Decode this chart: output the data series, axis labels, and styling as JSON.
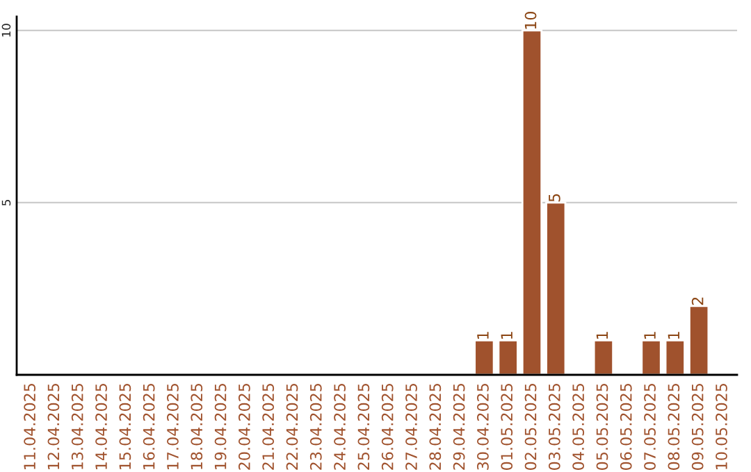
{
  "chart_data": {
    "type": "bar",
    "categories": [
      "11.04.2025",
      "12.04.2025",
      "13.04.2025",
      "14.04.2025",
      "15.04.2025",
      "16.04.2025",
      "17.04.2025",
      "18.04.2025",
      "19.04.2025",
      "20.04.2025",
      "21.04.2025",
      "22.04.2025",
      "23.04.2025",
      "24.04.2025",
      "25.04.2025",
      "26.04.2025",
      "27.04.2025",
      "28.04.2025",
      "29.04.2025",
      "30.04.2025",
      "01.05.2025",
      "02.05.2025",
      "03.05.2025",
      "04.05.2025",
      "05.05.2025",
      "06.05.2025",
      "07.05.2025",
      "08.05.2025",
      "09.05.2025",
      "10.05.2025"
    ],
    "values": [
      null,
      null,
      null,
      null,
      null,
      null,
      null,
      null,
      null,
      null,
      null,
      null,
      null,
      null,
      null,
      null,
      null,
      null,
      null,
      1,
      1,
      10,
      5,
      null,
      1,
      null,
      1,
      1,
      2,
      null
    ],
    "value_labels": [
      null,
      null,
      null,
      null,
      null,
      null,
      null,
      null,
      null,
      null,
      null,
      null,
      null,
      null,
      null,
      null,
      null,
      null,
      null,
      "1",
      "1",
      "10",
      "5",
      null,
      "1",
      null,
      "1",
      "1",
      "2",
      null
    ],
    "color": "#a0522d",
    "ylim": [
      0,
      10.4
    ],
    "yticks": [
      5,
      10
    ],
    "grid": "y"
  }
}
